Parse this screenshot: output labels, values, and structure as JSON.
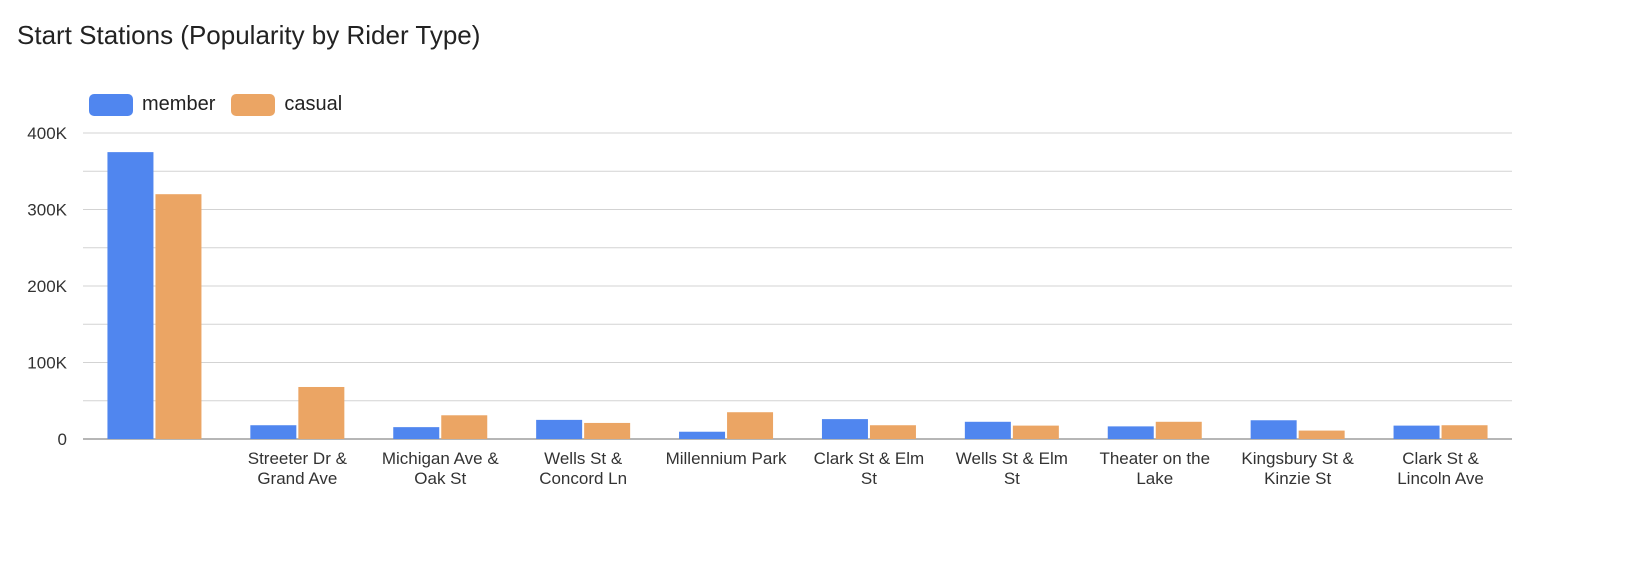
{
  "chart_data": {
    "type": "bar",
    "title": "Start Stations (Popularity by Rider Type)",
    "xlabel": "",
    "ylabel": "",
    "ylim": [
      0,
      400000
    ],
    "yticks": [
      0,
      100000,
      200000,
      300000,
      400000
    ],
    "ytick_labels": [
      "0",
      "100K",
      "200K",
      "300K",
      "400K"
    ],
    "grid": true,
    "legend_position": "top-left",
    "categories": [
      "",
      "Streeter Dr & Grand Ave",
      "Michigan Ave & Oak St",
      "Wells St & Concord Ln",
      "Millennium Park",
      "Clark St & Elm St",
      "Wells St & Elm St",
      "Theater on the Lake",
      "Kingsbury St & Kinzie St",
      "Clark St & Lincoln Ave"
    ],
    "category_lines": [
      [],
      [
        "Streeter Dr &",
        "Grand Ave"
      ],
      [
        "Michigan Ave &",
        "Oak St"
      ],
      [
        "Wells St &",
        "Concord Ln"
      ],
      [
        "Millennium Park"
      ],
      [
        "Clark St & Elm",
        "St"
      ],
      [
        "Wells St & Elm",
        "St"
      ],
      [
        "Theater on the",
        "Lake"
      ],
      [
        "Kingsbury St &",
        "Kinzie St"
      ],
      [
        "Clark St &",
        "Lincoln Ave"
      ]
    ],
    "series": [
      {
        "name": "member",
        "color": "#5086ef",
        "values": [
          375000,
          18000,
          15500,
          25000,
          9500,
          26000,
          22500,
          16500,
          24500,
          17500
        ]
      },
      {
        "name": "casual",
        "color": "#eba564",
        "values": [
          320000,
          68000,
          31000,
          21000,
          35000,
          18000,
          17500,
          22500,
          11000,
          18000
        ]
      }
    ]
  }
}
